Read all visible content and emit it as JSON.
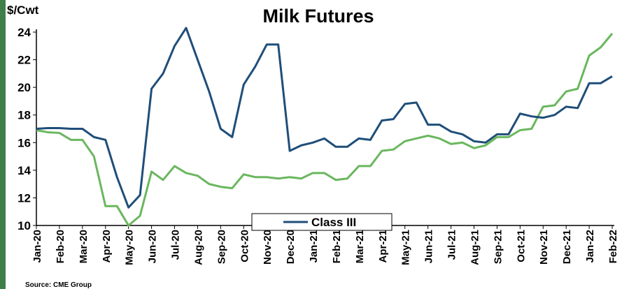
{
  "chart_data": {
    "type": "line",
    "title": "Milk Futures",
    "y_label": "$/Cwt",
    "source": "Source: CME Group",
    "categories": [
      "Jan-20",
      null,
      "Feb-20",
      null,
      "Mar-20",
      null,
      "Apr-20",
      null,
      "May-20",
      null,
      "Jun-20",
      null,
      "Jul-20",
      null,
      "Aug-20",
      null,
      "Sep-20",
      null,
      "Oct-20",
      null,
      "Nov-20",
      null,
      "Dec-20",
      null,
      "Jan-21",
      null,
      "Feb-21",
      null,
      "Mar-21",
      null,
      "Apr-21",
      null,
      "May-21",
      null,
      "Jun-21",
      null,
      "Jul-21",
      null,
      "Aug-21",
      null,
      "Sep-21",
      null,
      "Oct-21",
      null,
      "Nov-21",
      null,
      "Dec-21",
      null,
      "Jan-22",
      null,
      "Feb-22"
    ],
    "series": [
      {
        "name": "Class III",
        "color": "#1f4e79",
        "values": [
          17.0,
          17.05,
          17.05,
          17.0,
          17.0,
          16.4,
          16.2,
          13.5,
          11.3,
          12.2,
          19.9,
          21.0,
          23.0,
          24.3,
          22.0,
          19.7,
          17.0,
          16.4,
          20.2,
          21.5,
          23.1,
          23.1,
          15.4,
          15.8,
          16.0,
          16.3,
          15.7,
          15.7,
          16.3,
          16.2,
          17.6,
          17.7,
          18.8,
          18.9,
          17.3,
          17.3,
          16.8,
          16.6,
          16.1,
          16.0,
          16.6,
          16.6,
          18.1,
          17.9,
          17.8,
          18.0,
          18.6,
          18.5,
          20.3,
          20.3,
          20.8
        ]
      },
      {
        "color": "#6ab75e",
        "values": [
          16.9,
          16.75,
          16.7,
          16.2,
          16.2,
          15.0,
          11.4,
          11.4,
          10.0,
          10.7,
          13.9,
          13.3,
          14.3,
          13.8,
          13.6,
          13.0,
          12.8,
          12.7,
          13.7,
          13.5,
          13.5,
          13.4,
          13.5,
          13.4,
          13.8,
          13.8,
          13.3,
          13.4,
          14.3,
          14.3,
          15.4,
          15.5,
          16.1,
          16.3,
          16.5,
          16.3,
          15.9,
          16.0,
          15.6,
          15.8,
          16.4,
          16.4,
          16.9,
          17.0,
          18.6,
          18.7,
          19.7,
          19.9,
          22.3,
          22.9,
          23.9
        ]
      }
    ],
    "ylim": [
      10,
      24
    ],
    "yticks": [
      10,
      12,
      14,
      16,
      18,
      20,
      22,
      24
    ],
    "grid": false
  }
}
